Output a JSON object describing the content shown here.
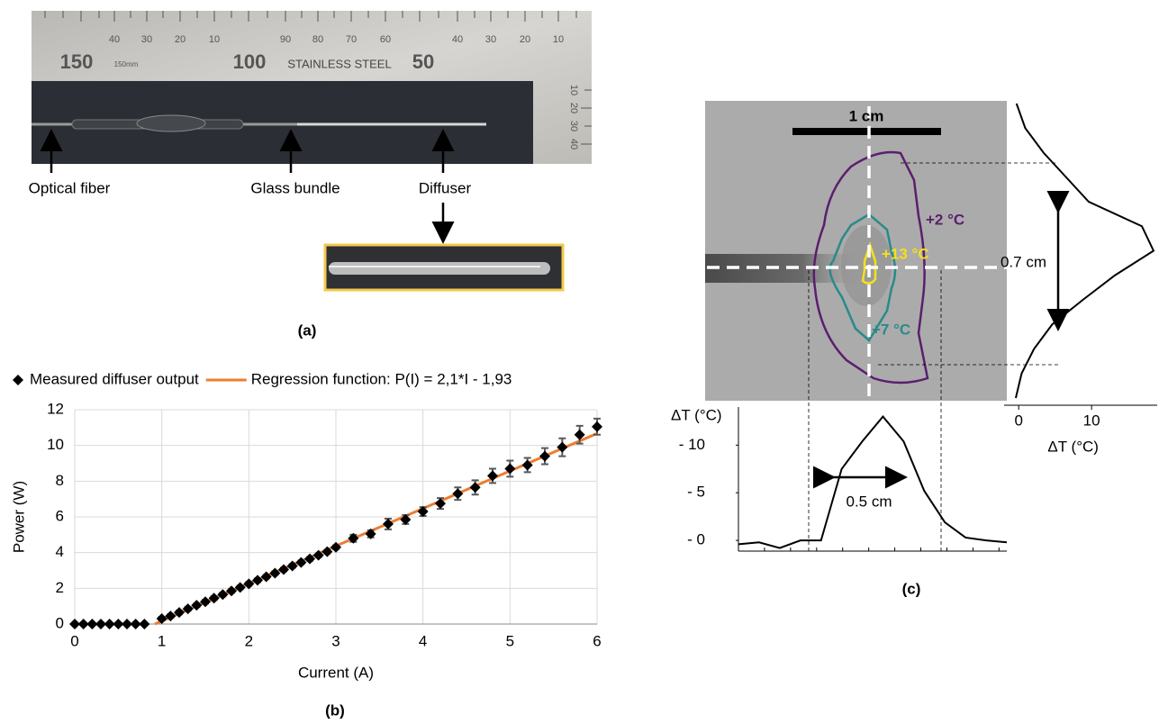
{
  "panel_a": {
    "caption": "(a)",
    "labels": [
      "Optical fiber",
      "Glass bundle",
      "Diffuser"
    ],
    "ruler_large": [
      "150",
      "150mm",
      "100",
      "STAINLESS STEEL",
      "50"
    ],
    "ruler_small": [
      "40",
      "30",
      "20",
      "10",
      "90",
      "80",
      "70",
      "60",
      "40",
      "30",
      "20",
      "10"
    ],
    "ruler_side": [
      "10",
      "20",
      "30",
      "40"
    ]
  },
  "panel_b": {
    "caption": "(b)"
  },
  "panel_c": {
    "caption": "(c)",
    "scale_bar": "1 cm",
    "contours": [
      "+2 °C",
      "+7 °C",
      "+13 °C"
    ],
    "width_vertical": "0.7 cm",
    "width_horizontal": "0.5 cm"
  },
  "chart_data": [
    {
      "type": "scatter",
      "xlabel": "Current (A)",
      "ylabel": "Power (W)",
      "xlim": [
        0,
        6
      ],
      "ylim": [
        0,
        12
      ],
      "xticks": [
        0,
        1,
        2,
        3,
        4,
        5,
        6
      ],
      "yticks": [
        0,
        2,
        4,
        6,
        8,
        10,
        12
      ],
      "grid": true,
      "series": [
        {
          "name": "Measured diffuser output",
          "color": "#000000",
          "x": [
            0,
            0.1,
            0.2,
            0.3,
            0.4,
            0.5,
            0.6,
            0.7,
            0.8,
            1.0,
            1.1,
            1.2,
            1.3,
            1.4,
            1.5,
            1.6,
            1.7,
            1.8,
            1.9,
            2.0,
            2.1,
            2.2,
            2.3,
            2.4,
            2.5,
            2.6,
            2.7,
            2.8,
            2.9,
            3.0,
            3.2,
            3.4,
            3.6,
            3.8,
            4.0,
            4.2,
            4.4,
            4.6,
            4.8,
            5.0,
            5.2,
            5.4,
            5.6,
            5.8,
            6.0
          ],
          "values": [
            0,
            0,
            0,
            0,
            0,
            0,
            0,
            0,
            0,
            0.3,
            0.45,
            0.65,
            0.85,
            1.05,
            1.25,
            1.45,
            1.65,
            1.85,
            2.05,
            2.25,
            2.45,
            2.65,
            2.85,
            3.05,
            3.25,
            3.45,
            3.65,
            3.85,
            4.05,
            4.3,
            4.8,
            5.05,
            5.6,
            5.85,
            6.3,
            6.75,
            7.3,
            7.65,
            8.3,
            8.7,
            8.9,
            9.4,
            9.9,
            10.6,
            11.05
          ],
          "errors": [
            0,
            0,
            0,
            0,
            0,
            0,
            0,
            0,
            0,
            0.1,
            0.1,
            0.1,
            0.1,
            0.1,
            0.1,
            0.1,
            0.1,
            0.1,
            0.1,
            0.1,
            0.1,
            0.1,
            0.1,
            0.1,
            0.1,
            0.1,
            0.1,
            0.1,
            0.1,
            0.1,
            0.2,
            0.2,
            0.3,
            0.25,
            0.25,
            0.3,
            0.35,
            0.4,
            0.4,
            0.45,
            0.4,
            0.45,
            0.5,
            0.5,
            0.45
          ]
        },
        {
          "name": "Regression function: P(I) = 2,1*I - 1,93",
          "color": "#ed7d31",
          "type": "line",
          "x": [
            0.92,
            6
          ],
          "values": [
            0,
            10.67
          ]
        }
      ]
    },
    {
      "type": "line",
      "ylabel": "ΔT (°C)",
      "color": "#000000",
      "categories": [
        null,
        null,
        null,
        null,
        null,
        null,
        null,
        null,
        null,
        null,
        null,
        null,
        null,
        null
      ],
      "values": [
        -0.4,
        -0.2,
        -0.8,
        0,
        0,
        7.5,
        10.4,
        13,
        10.4,
        5.2,
        1.9,
        0.3,
        0,
        -0.2
      ],
      "ylim": [
        -1.5,
        14
      ],
      "yticks": [
        {
          "value": 0,
          "label": "- 0"
        },
        {
          "value": 5,
          "label": "- 5"
        },
        {
          "value": 10,
          "label": "- 10"
        }
      ]
    },
    {
      "type": "line",
      "orientation": "vertical",
      "xlabel": "ΔT (°C)",
      "color": "#000000",
      "categories": [
        null,
        null,
        null,
        null,
        null,
        null,
        null,
        null,
        null,
        null,
        null,
        null,
        null
      ],
      "values": [
        -0.3,
        0.9,
        3.4,
        6.5,
        9.6,
        16.9,
        18.5,
        13.2,
        8.8,
        4.6,
        2.1,
        0.4,
        -0.4
      ],
      "xlim": [
        -2,
        19
      ],
      "xticks": [
        0,
        10
      ]
    }
  ]
}
